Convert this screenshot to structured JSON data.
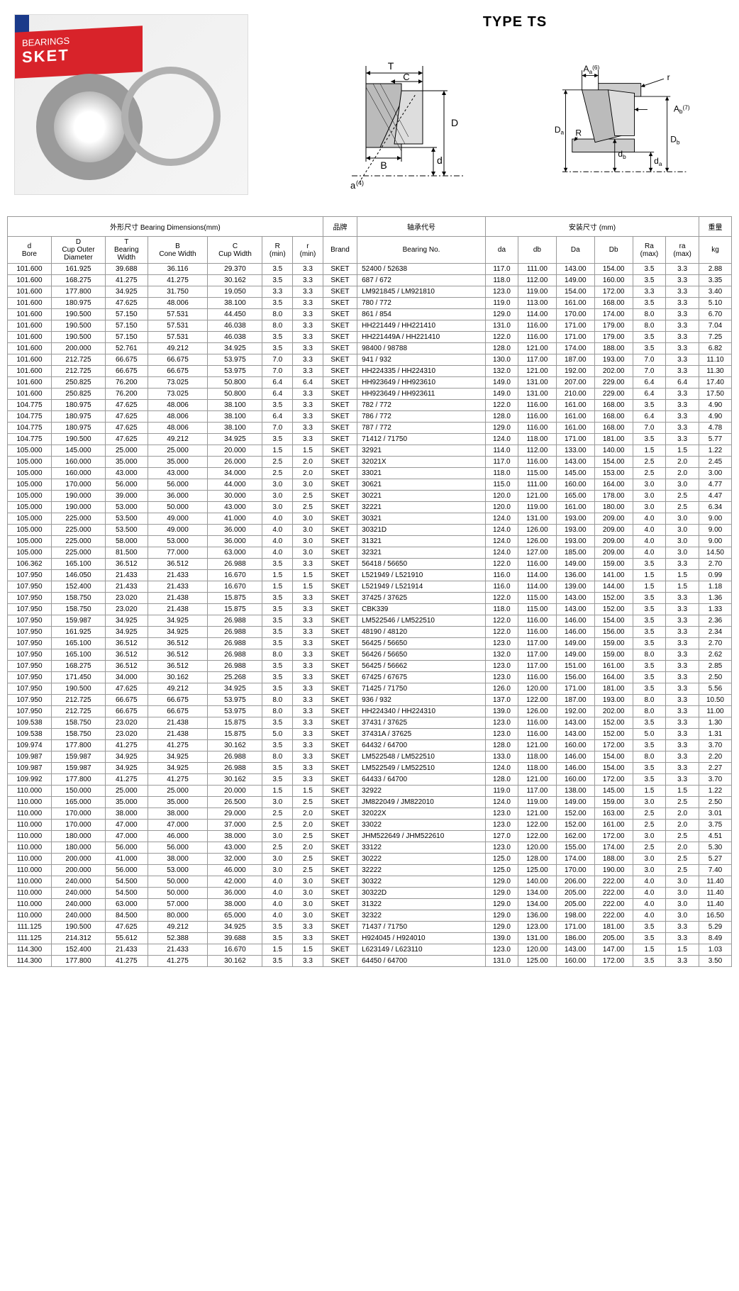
{
  "header": {
    "type_title": "TYPE TS",
    "photo_brand": "SKET",
    "photo_sub": "BEARINGS",
    "diagram1_labels": {
      "T": "T",
      "C": "C",
      "B": "B",
      "D": "D",
      "d": "d",
      "a": "a",
      "a_sup": "(4)"
    },
    "diagram2_labels": {
      "Aa": "A",
      "Aa_sub": "a",
      "Aa_sup": "(6)",
      "Ab": "A",
      "Ab_sub": "b",
      "Ab_sup": "(7)",
      "Da": "D",
      "Da_sub": "a",
      "R": "R",
      "db": "d",
      "db_sub": "b",
      "da": "d",
      "da_sub": "a",
      "Db": "D",
      "Db_sub": "b",
      "r": "r"
    }
  },
  "table": {
    "group_headers": {
      "dimensions": "外形尺寸  Bearing Dimensions(mm)",
      "brand": "品牌",
      "bearing_no": "轴承代号",
      "mounting": "安装尺寸 (mm)",
      "weight": "重量"
    },
    "columns": [
      "d\nBore",
      "D\nCup Outer\nDiameter",
      "T\nBearing\nWidth",
      "B\nCone Width",
      "C\nCup Width",
      "R\n(min)",
      "r\n(min)",
      "Brand",
      "Bearing No.",
      "da",
      "db",
      "Da",
      "Db",
      "Ra\n(max)",
      "ra\n(max)",
      "kg"
    ],
    "rows": [
      [
        "101.600",
        "161.925",
        "39.688",
        "36.116",
        "29.370",
        "3.5",
        "3.3",
        "SKET",
        "52400 / 52638",
        "117.0",
        "111.00",
        "143.00",
        "154.00",
        "3.5",
        "3.3",
        "2.88"
      ],
      [
        "101.600",
        "168.275",
        "41.275",
        "41.275",
        "30.162",
        "3.5",
        "3.3",
        "SKET",
        "687 / 672",
        "118.0",
        "112.00",
        "149.00",
        "160.00",
        "3.5",
        "3.3",
        "3.35"
      ],
      [
        "101.600",
        "177.800",
        "34.925",
        "31.750",
        "19.050",
        "3.3",
        "3.3",
        "SKET",
        "LM921845 / LM921810",
        "123.0",
        "119.00",
        "154.00",
        "172.00",
        "3.3",
        "3.3",
        "3.40"
      ],
      [
        "101.600",
        "180.975",
        "47.625",
        "48.006",
        "38.100",
        "3.5",
        "3.3",
        "SKET",
        "780 / 772",
        "119.0",
        "113.00",
        "161.00",
        "168.00",
        "3.5",
        "3.3",
        "5.10"
      ],
      [
        "101.600",
        "190.500",
        "57.150",
        "57.531",
        "44.450",
        "8.0",
        "3.3",
        "SKET",
        "861 / 854",
        "129.0",
        "114.00",
        "170.00",
        "174.00",
        "8.0",
        "3.3",
        "6.70"
      ],
      [
        "101.600",
        "190.500",
        "57.150",
        "57.531",
        "46.038",
        "8.0",
        "3.3",
        "SKET",
        "HH221449 / HH221410",
        "131.0",
        "116.00",
        "171.00",
        "179.00",
        "8.0",
        "3.3",
        "7.04"
      ],
      [
        "101.600",
        "190.500",
        "57.150",
        "57.531",
        "46.038",
        "3.5",
        "3.3",
        "SKET",
        "HH221449A / HH221410",
        "122.0",
        "116.00",
        "171.00",
        "179.00",
        "3.5",
        "3.3",
        "7.25"
      ],
      [
        "101.600",
        "200.000",
        "52.761",
        "49.212",
        "34.925",
        "3.5",
        "3.3",
        "SKET",
        "98400 / 98788",
        "128.0",
        "121.00",
        "174.00",
        "188.00",
        "3.5",
        "3.3",
        "6.82"
      ],
      [
        "101.600",
        "212.725",
        "66.675",
        "66.675",
        "53.975",
        "7.0",
        "3.3",
        "SKET",
        "941 / 932",
        "130.0",
        "117.00",
        "187.00",
        "193.00",
        "7.0",
        "3.3",
        "11.10"
      ],
      [
        "101.600",
        "212.725",
        "66.675",
        "66.675",
        "53.975",
        "7.0",
        "3.3",
        "SKET",
        "HH224335 / HH224310",
        "132.0",
        "121.00",
        "192.00",
        "202.00",
        "7.0",
        "3.3",
        "11.30"
      ],
      [
        "101.600",
        "250.825",
        "76.200",
        "73.025",
        "50.800",
        "6.4",
        "6.4",
        "SKET",
        "HH923649 / HH923610",
        "149.0",
        "131.00",
        "207.00",
        "229.00",
        "6.4",
        "6.4",
        "17.40"
      ],
      [
        "101.600",
        "250.825",
        "76.200",
        "73.025",
        "50.800",
        "6.4",
        "3.3",
        "SKET",
        "HH923649 / HH923611",
        "149.0",
        "131.00",
        "210.00",
        "229.00",
        "6.4",
        "3.3",
        "17.50"
      ],
      [
        "104.775",
        "180.975",
        "47.625",
        "48.006",
        "38.100",
        "3.5",
        "3.3",
        "SKET",
        "782 / 772",
        "122.0",
        "116.00",
        "161.00",
        "168.00",
        "3.5",
        "3.3",
        "4.90"
      ],
      [
        "104.775",
        "180.975",
        "47.625",
        "48.006",
        "38.100",
        "6.4",
        "3.3",
        "SKET",
        "786 / 772",
        "128.0",
        "116.00",
        "161.00",
        "168.00",
        "6.4",
        "3.3",
        "4.90"
      ],
      [
        "104.775",
        "180.975",
        "47.625",
        "48.006",
        "38.100",
        "7.0",
        "3.3",
        "SKET",
        "787 / 772",
        "129.0",
        "116.00",
        "161.00",
        "168.00",
        "7.0",
        "3.3",
        "4.78"
      ],
      [
        "104.775",
        "190.500",
        "47.625",
        "49.212",
        "34.925",
        "3.5",
        "3.3",
        "SKET",
        "71412 / 71750",
        "124.0",
        "118.00",
        "171.00",
        "181.00",
        "3.5",
        "3.3",
        "5.77"
      ],
      [
        "105.000",
        "145.000",
        "25.000",
        "25.000",
        "20.000",
        "1.5",
        "1.5",
        "SKET",
        "32921",
        "114.0",
        "112.00",
        "133.00",
        "140.00",
        "1.5",
        "1.5",
        "1.22"
      ],
      [
        "105.000",
        "160.000",
        "35.000",
        "35.000",
        "26.000",
        "2.5",
        "2.0",
        "SKET",
        "32021X",
        "117.0",
        "116.00",
        "143.00",
        "154.00",
        "2.5",
        "2.0",
        "2.45"
      ],
      [
        "105.000",
        "160.000",
        "43.000",
        "43.000",
        "34.000",
        "2.5",
        "2.0",
        "SKET",
        "33021",
        "118.0",
        "115.00",
        "145.00",
        "153.00",
        "2.5",
        "2.0",
        "3.00"
      ],
      [
        "105.000",
        "170.000",
        "56.000",
        "56.000",
        "44.000",
        "3.0",
        "3.0",
        "SKET",
        "30621",
        "115.0",
        "111.00",
        "160.00",
        "164.00",
        "3.0",
        "3.0",
        "4.77"
      ],
      [
        "105.000",
        "190.000",
        "39.000",
        "36.000",
        "30.000",
        "3.0",
        "2.5",
        "SKET",
        "30221",
        "120.0",
        "121.00",
        "165.00",
        "178.00",
        "3.0",
        "2.5",
        "4.47"
      ],
      [
        "105.000",
        "190.000",
        "53.000",
        "50.000",
        "43.000",
        "3.0",
        "2.5",
        "SKET",
        "32221",
        "120.0",
        "119.00",
        "161.00",
        "180.00",
        "3.0",
        "2.5",
        "6.34"
      ],
      [
        "105.000",
        "225.000",
        "53.500",
        "49.000",
        "41.000",
        "4.0",
        "3.0",
        "SKET",
        "30321",
        "124.0",
        "131.00",
        "193.00",
        "209.00",
        "4.0",
        "3.0",
        "9.00"
      ],
      [
        "105.000",
        "225.000",
        "53.500",
        "49.000",
        "36.000",
        "4.0",
        "3.0",
        "SKET",
        "30321D",
        "124.0",
        "126.00",
        "193.00",
        "209.00",
        "4.0",
        "3.0",
        "9.00"
      ],
      [
        "105.000",
        "225.000",
        "58.000",
        "53.000",
        "36.000",
        "4.0",
        "3.0",
        "SKET",
        "31321",
        "124.0",
        "126.00",
        "193.00",
        "209.00",
        "4.0",
        "3.0",
        "9.00"
      ],
      [
        "105.000",
        "225.000",
        "81.500",
        "77.000",
        "63.000",
        "4.0",
        "3.0",
        "SKET",
        "32321",
        "124.0",
        "127.00",
        "185.00",
        "209.00",
        "4.0",
        "3.0",
        "14.50"
      ],
      [
        "106.362",
        "165.100",
        "36.512",
        "36.512",
        "26.988",
        "3.5",
        "3.3",
        "SKET",
        "56418 / 56650",
        "122.0",
        "116.00",
        "149.00",
        "159.00",
        "3.5",
        "3.3",
        "2.70"
      ],
      [
        "107.950",
        "146.050",
        "21.433",
        "21.433",
        "16.670",
        "1.5",
        "1.5",
        "SKET",
        "L521949 / L521910",
        "116.0",
        "114.00",
        "136.00",
        "141.00",
        "1.5",
        "1.5",
        "0.99"
      ],
      [
        "107.950",
        "152.400",
        "21.433",
        "21.433",
        "16.670",
        "1.5",
        "1.5",
        "SKET",
        "L521949 / L521914",
        "116.0",
        "114.00",
        "139.00",
        "144.00",
        "1.5",
        "1.5",
        "1.18"
      ],
      [
        "107.950",
        "158.750",
        "23.020",
        "21.438",
        "15.875",
        "3.5",
        "3.3",
        "SKET",
        "37425 / 37625",
        "122.0",
        "115.00",
        "143.00",
        "152.00",
        "3.5",
        "3.3",
        "1.36"
      ],
      [
        "107.950",
        "158.750",
        "23.020",
        "21.438",
        "15.875",
        "3.5",
        "3.3",
        "SKET",
        "CBK339",
        "118.0",
        "115.00",
        "143.00",
        "152.00",
        "3.5",
        "3.3",
        "1.33"
      ],
      [
        "107.950",
        "159.987",
        "34.925",
        "34.925",
        "26.988",
        "3.5",
        "3.3",
        "SKET",
        "LM522546 / LM522510",
        "122.0",
        "116.00",
        "146.00",
        "154.00",
        "3.5",
        "3.3",
        "2.36"
      ],
      [
        "107.950",
        "161.925",
        "34.925",
        "34.925",
        "26.988",
        "3.5",
        "3.3",
        "SKET",
        "48190 / 48120",
        "122.0",
        "116.00",
        "146.00",
        "156.00",
        "3.5",
        "3.3",
        "2.34"
      ],
      [
        "107.950",
        "165.100",
        "36.512",
        "36.512",
        "26.988",
        "3.5",
        "3.3",
        "SKET",
        "56425 / 56650",
        "123.0",
        "117.00",
        "149.00",
        "159.00",
        "3.5",
        "3.3",
        "2.70"
      ],
      [
        "107.950",
        "165.100",
        "36.512",
        "36.512",
        "26.988",
        "8.0",
        "3.3",
        "SKET",
        "56426 / 56650",
        "132.0",
        "117.00",
        "149.00",
        "159.00",
        "8.0",
        "3.3",
        "2.62"
      ],
      [
        "107.950",
        "168.275",
        "36.512",
        "36.512",
        "26.988",
        "3.5",
        "3.3",
        "SKET",
        "56425 / 56662",
        "123.0",
        "117.00",
        "151.00",
        "161.00",
        "3.5",
        "3.3",
        "2.85"
      ],
      [
        "107.950",
        "171.450",
        "34.000",
        "30.162",
        "25.268",
        "3.5",
        "3.3",
        "SKET",
        "67425 / 67675",
        "123.0",
        "116.00",
        "156.00",
        "164.00",
        "3.5",
        "3.3",
        "2.50"
      ],
      [
        "107.950",
        "190.500",
        "47.625",
        "49.212",
        "34.925",
        "3.5",
        "3.3",
        "SKET",
        "71425 / 71750",
        "126.0",
        "120.00",
        "171.00",
        "181.00",
        "3.5",
        "3.3",
        "5.56"
      ],
      [
        "107.950",
        "212.725",
        "66.675",
        "66.675",
        "53.975",
        "8.0",
        "3.3",
        "SKET",
        "936 / 932",
        "137.0",
        "122.00",
        "187.00",
        "193.00",
        "8.0",
        "3.3",
        "10.50"
      ],
      [
        "107.950",
        "212.725",
        "66.675",
        "66.675",
        "53.975",
        "8.0",
        "3.3",
        "SKET",
        "HH224340 / HH224310",
        "139.0",
        "126.00",
        "192.00",
        "202.00",
        "8.0",
        "3.3",
        "11.00"
      ],
      [
        "109.538",
        "158.750",
        "23.020",
        "21.438",
        "15.875",
        "3.5",
        "3.3",
        "SKET",
        "37431 / 37625",
        "123.0",
        "116.00",
        "143.00",
        "152.00",
        "3.5",
        "3.3",
        "1.30"
      ],
      [
        "109.538",
        "158.750",
        "23.020",
        "21.438",
        "15.875",
        "5.0",
        "3.3",
        "SKET",
        "37431A / 37625",
        "123.0",
        "116.00",
        "143.00",
        "152.00",
        "5.0",
        "3.3",
        "1.31"
      ],
      [
        "109.974",
        "177.800",
        "41.275",
        "41.275",
        "30.162",
        "3.5",
        "3.3",
        "SKET",
        "64432 / 64700",
        "128.0",
        "121.00",
        "160.00",
        "172.00",
        "3.5",
        "3.3",
        "3.70"
      ],
      [
        "109.987",
        "159.987",
        "34.925",
        "34.925",
        "26.988",
        "8.0",
        "3.3",
        "SKET",
        "LM522548 / LM522510",
        "133.0",
        "118.00",
        "146.00",
        "154.00",
        "8.0",
        "3.3",
        "2.20"
      ],
      [
        "109.987",
        "159.987",
        "34.925",
        "34.925",
        "26.988",
        "3.5",
        "3.3",
        "SKET",
        "LM522549 / LM522510",
        "124.0",
        "118.00",
        "146.00",
        "154.00",
        "3.5",
        "3.3",
        "2.27"
      ],
      [
        "109.992",
        "177.800",
        "41.275",
        "41.275",
        "30.162",
        "3.5",
        "3.3",
        "SKET",
        "64433 / 64700",
        "128.0",
        "121.00",
        "160.00",
        "172.00",
        "3.5",
        "3.3",
        "3.70"
      ],
      [
        "110.000",
        "150.000",
        "25.000",
        "25.000",
        "20.000",
        "1.5",
        "1.5",
        "SKET",
        "32922",
        "119.0",
        "117.00",
        "138.00",
        "145.00",
        "1.5",
        "1.5",
        "1.22"
      ],
      [
        "110.000",
        "165.000",
        "35.000",
        "35.000",
        "26.500",
        "3.0",
        "2.5",
        "SKET",
        "JM822049 / JM822010",
        "124.0",
        "119.00",
        "149.00",
        "159.00",
        "3.0",
        "2.5",
        "2.50"
      ],
      [
        "110.000",
        "170.000",
        "38.000",
        "38.000",
        "29.000",
        "2.5",
        "2.0",
        "SKET",
        "32022X",
        "123.0",
        "121.00",
        "152.00",
        "163.00",
        "2.5",
        "2.0",
        "3.01"
      ],
      [
        "110.000",
        "170.000",
        "47.000",
        "47.000",
        "37.000",
        "2.5",
        "2.0",
        "SKET",
        "33022",
        "123.0",
        "122.00",
        "152.00",
        "161.00",
        "2.5",
        "2.0",
        "3.75"
      ],
      [
        "110.000",
        "180.000",
        "47.000",
        "46.000",
        "38.000",
        "3.0",
        "2.5",
        "SKET",
        "JHM522649 / JHM522610",
        "127.0",
        "122.00",
        "162.00",
        "172.00",
        "3.0",
        "2.5",
        "4.51"
      ],
      [
        "110.000",
        "180.000",
        "56.000",
        "56.000",
        "43.000",
        "2.5",
        "2.0",
        "SKET",
        "33122",
        "123.0",
        "120.00",
        "155.00",
        "174.00",
        "2.5",
        "2.0",
        "5.30"
      ],
      [
        "110.000",
        "200.000",
        "41.000",
        "38.000",
        "32.000",
        "3.0",
        "2.5",
        "SKET",
        "30222",
        "125.0",
        "128.00",
        "174.00",
        "188.00",
        "3.0",
        "2.5",
        "5.27"
      ],
      [
        "110.000",
        "200.000",
        "56.000",
        "53.000",
        "46.000",
        "3.0",
        "2.5",
        "SKET",
        "32222",
        "125.0",
        "125.00",
        "170.00",
        "190.00",
        "3.0",
        "2.5",
        "7.40"
      ],
      [
        "110.000",
        "240.000",
        "54.500",
        "50.000",
        "42.000",
        "4.0",
        "3.0",
        "SKET",
        "30322",
        "129.0",
        "140.00",
        "206.00",
        "222.00",
        "4.0",
        "3.0",
        "11.40"
      ],
      [
        "110.000",
        "240.000",
        "54.500",
        "50.000",
        "36.000",
        "4.0",
        "3.0",
        "SKET",
        "30322D",
        "129.0",
        "134.00",
        "205.00",
        "222.00",
        "4.0",
        "3.0",
        "11.40"
      ],
      [
        "110.000",
        "240.000",
        "63.000",
        "57.000",
        "38.000",
        "4.0",
        "3.0",
        "SKET",
        "31322",
        "129.0",
        "134.00",
        "205.00",
        "222.00",
        "4.0",
        "3.0",
        "11.40"
      ],
      [
        "110.000",
        "240.000",
        "84.500",
        "80.000",
        "65.000",
        "4.0",
        "3.0",
        "SKET",
        "32322",
        "129.0",
        "136.00",
        "198.00",
        "222.00",
        "4.0",
        "3.0",
        "16.50"
      ],
      [
        "111.125",
        "190.500",
        "47.625",
        "49.212",
        "34.925",
        "3.5",
        "3.3",
        "SKET",
        "71437 / 71750",
        "129.0",
        "123.00",
        "171.00",
        "181.00",
        "3.5",
        "3.3",
        "5.29"
      ],
      [
        "111.125",
        "214.312",
        "55.612",
        "52.388",
        "39.688",
        "3.5",
        "3.3",
        "SKET",
        "H924045 / H924010",
        "139.0",
        "131.00",
        "186.00",
        "205.00",
        "3.5",
        "3.3",
        "8.49"
      ],
      [
        "114.300",
        "152.400",
        "21.433",
        "21.433",
        "16.670",
        "1.5",
        "1.5",
        "SKET",
        "L623149 / L623110",
        "123.0",
        "120.00",
        "143.00",
        "147.00",
        "1.5",
        "1.5",
        "1.03"
      ],
      [
        "114.300",
        "177.800",
        "41.275",
        "41.275",
        "30.162",
        "3.5",
        "3.3",
        "SKET",
        "64450 / 64700",
        "131.0",
        "125.00",
        "160.00",
        "172.00",
        "3.5",
        "3.3",
        "3.50"
      ]
    ]
  }
}
